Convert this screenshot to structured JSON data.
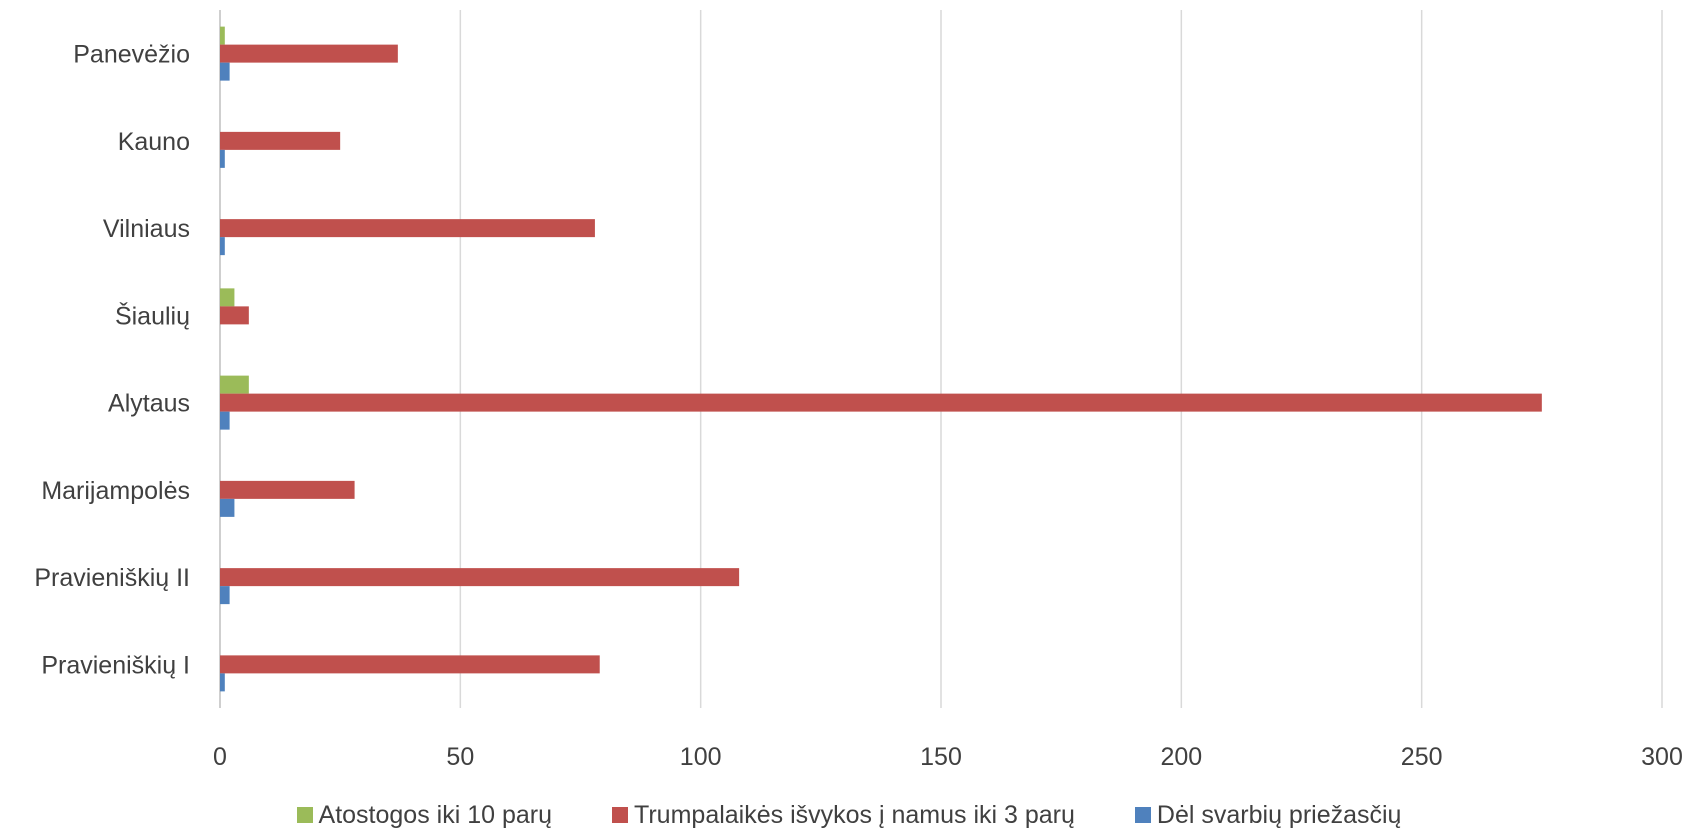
{
  "chart_data": {
    "type": "bar",
    "orientation": "horizontal",
    "categories": [
      "Panevėžio",
      "Kauno",
      "Vilniaus",
      "Šiaulių",
      "Alytaus",
      "Marijampolės",
      "Pravieniškių II",
      "Pravieniškių I"
    ],
    "series": [
      {
        "name": "Atostogos iki 10 parų",
        "color": "#9BBB59",
        "values": [
          1,
          0,
          0,
          3,
          6,
          0,
          0,
          0
        ]
      },
      {
        "name": "Trumpalaikės išvykos į namus iki 3 parų",
        "color": "#C0504D",
        "values": [
          37,
          25,
          78,
          6,
          275,
          28,
          108,
          79
        ]
      },
      {
        "name": "Dėl svarbių priežasčių",
        "color": "#4F81BD",
        "values": [
          2,
          1,
          1,
          0,
          2,
          3,
          2,
          1
        ]
      }
    ],
    "xlim": [
      0,
      300
    ],
    "xticks": [
      0,
      50,
      100,
      150,
      200,
      250,
      300
    ],
    "grid": "vertical",
    "legend_position": "bottom"
  }
}
